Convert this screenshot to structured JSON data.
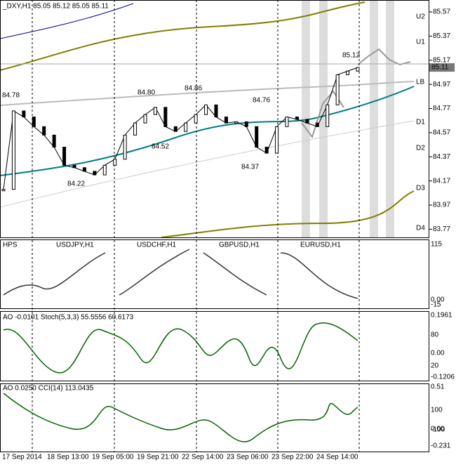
{
  "title": "_DXY,H1 85.05 85.12 85.05 85.11",
  "price_axis": {
    "ylim": [
      85.64,
      83.72
    ],
    "yticks": [
      85.57,
      85.37,
      85.17,
      84.97,
      84.77,
      84.57,
      84.37,
      84.17,
      83.97,
      83.77
    ],
    "current": 85.11
  },
  "price_series": [
    84.1,
    84.75,
    84.7,
    84.62,
    84.55,
    84.45,
    84.3,
    84.28,
    84.25,
    84.22,
    84.3,
    84.35,
    84.55,
    84.65,
    84.72,
    84.78,
    84.62,
    84.58,
    84.65,
    84.72,
    84.8,
    84.7,
    84.65,
    84.66,
    84.62,
    84.45,
    84.4,
    84.62,
    84.7,
    84.68,
    84.65,
    84.62,
    84.8,
    85.05,
    85.08,
    85.11
  ],
  "levels": [
    "U2",
    "U1",
    "LB",
    "D1",
    "D2",
    "D3",
    "D4"
  ],
  "annotations": [
    "84.78",
    "84.80",
    "84.86",
    "84.76",
    "85.12",
    "84.52",
    "84.22",
    "84.37"
  ],
  "pane2": {
    "labels": [
      "HPS",
      "USDJPY,H1",
      "USDCHF,H1",
      "GBPUSD,H1",
      "EURUSD,H1"
    ],
    "axis": [
      "115",
      "0.00",
      "-15"
    ]
  },
  "pane3": {
    "label": "AO -0.0101  Stoch(5,3,3) 55.5556 60.6173",
    "axis": [
      "0.1961",
      "80",
      "0.00",
      "20",
      "-0.1206"
    ]
  },
  "pane4": {
    "label": "AO 0.0250  CCI(14) 113.0435",
    "axis": [
      "0.51",
      "100",
      "0.00",
      "-100",
      "-0.231"
    ]
  },
  "dates": [
    "17 Sep 2014",
    "18 Sep 13:00",
    "19 Sep 05:00",
    "19 Sep 21:00",
    "22 Sep 14:00",
    "23 Sep 06:00",
    "23 Sep 22:00",
    "24 Sep 14:00"
  ]
}
